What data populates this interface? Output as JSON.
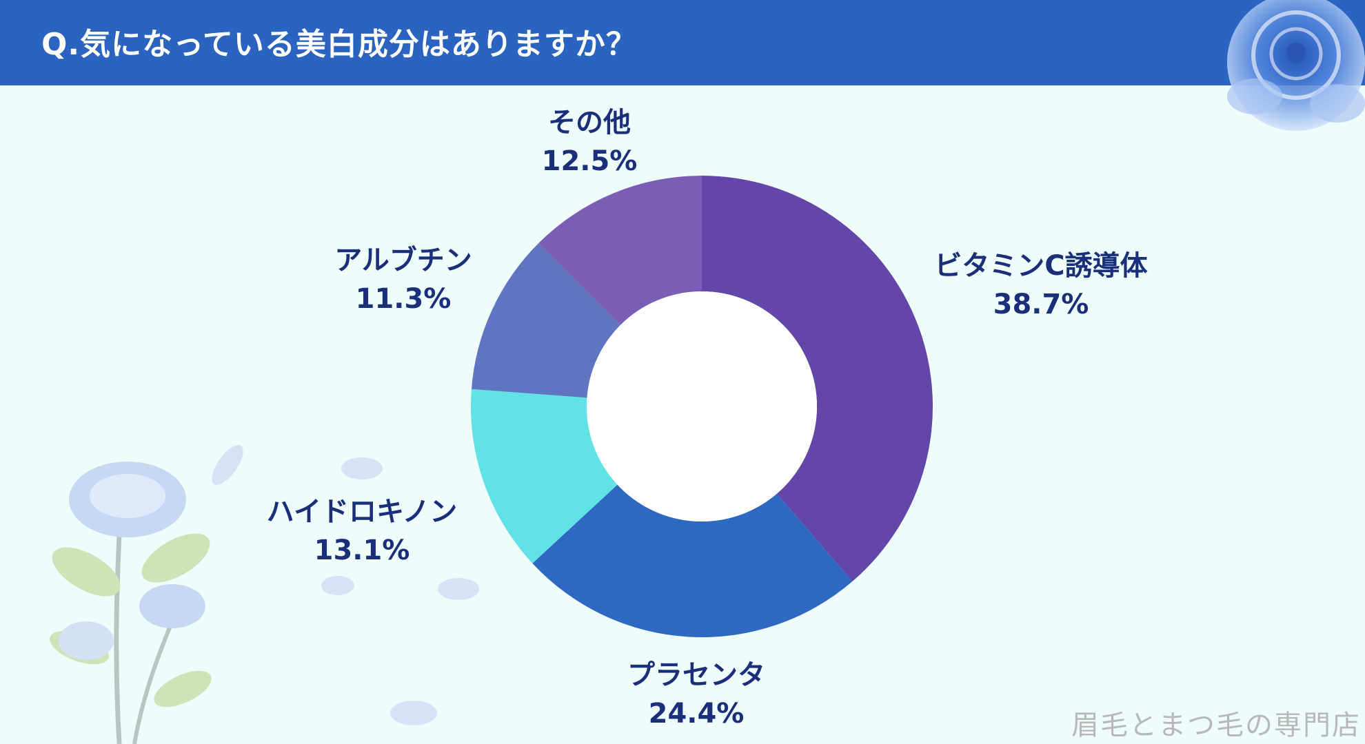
{
  "header": {
    "title": "Q.気になっている美白成分はありますか？"
  },
  "watermark": "眉毛とまつ毛の専門店",
  "colors": {
    "header_bg": "#2a63c0",
    "page_bg": "#eefcfc",
    "label_text": "#1a2f7a"
  },
  "chart_data": {
    "type": "pie",
    "donut": true,
    "slices": [
      {
        "label": "ビタミンC誘導体",
        "value": 38.7,
        "value_label": "38.7%",
        "color": "#6347a8"
      },
      {
        "label": "プラセンタ",
        "value": 24.4,
        "value_label": "24.4%",
        "color": "#2d68c2"
      },
      {
        "label": "ハイドロキノン",
        "value": 13.1,
        "value_label": "13.1%",
        "color": "#60e2e6"
      },
      {
        "label": "アルブチン",
        "value": 11.3,
        "value_label": "11.3%",
        "color": "#5f75c1"
      },
      {
        "label": "その他",
        "value": 12.5,
        "value_label": "12.5%",
        "color": "#7a5eb5"
      }
    ]
  }
}
